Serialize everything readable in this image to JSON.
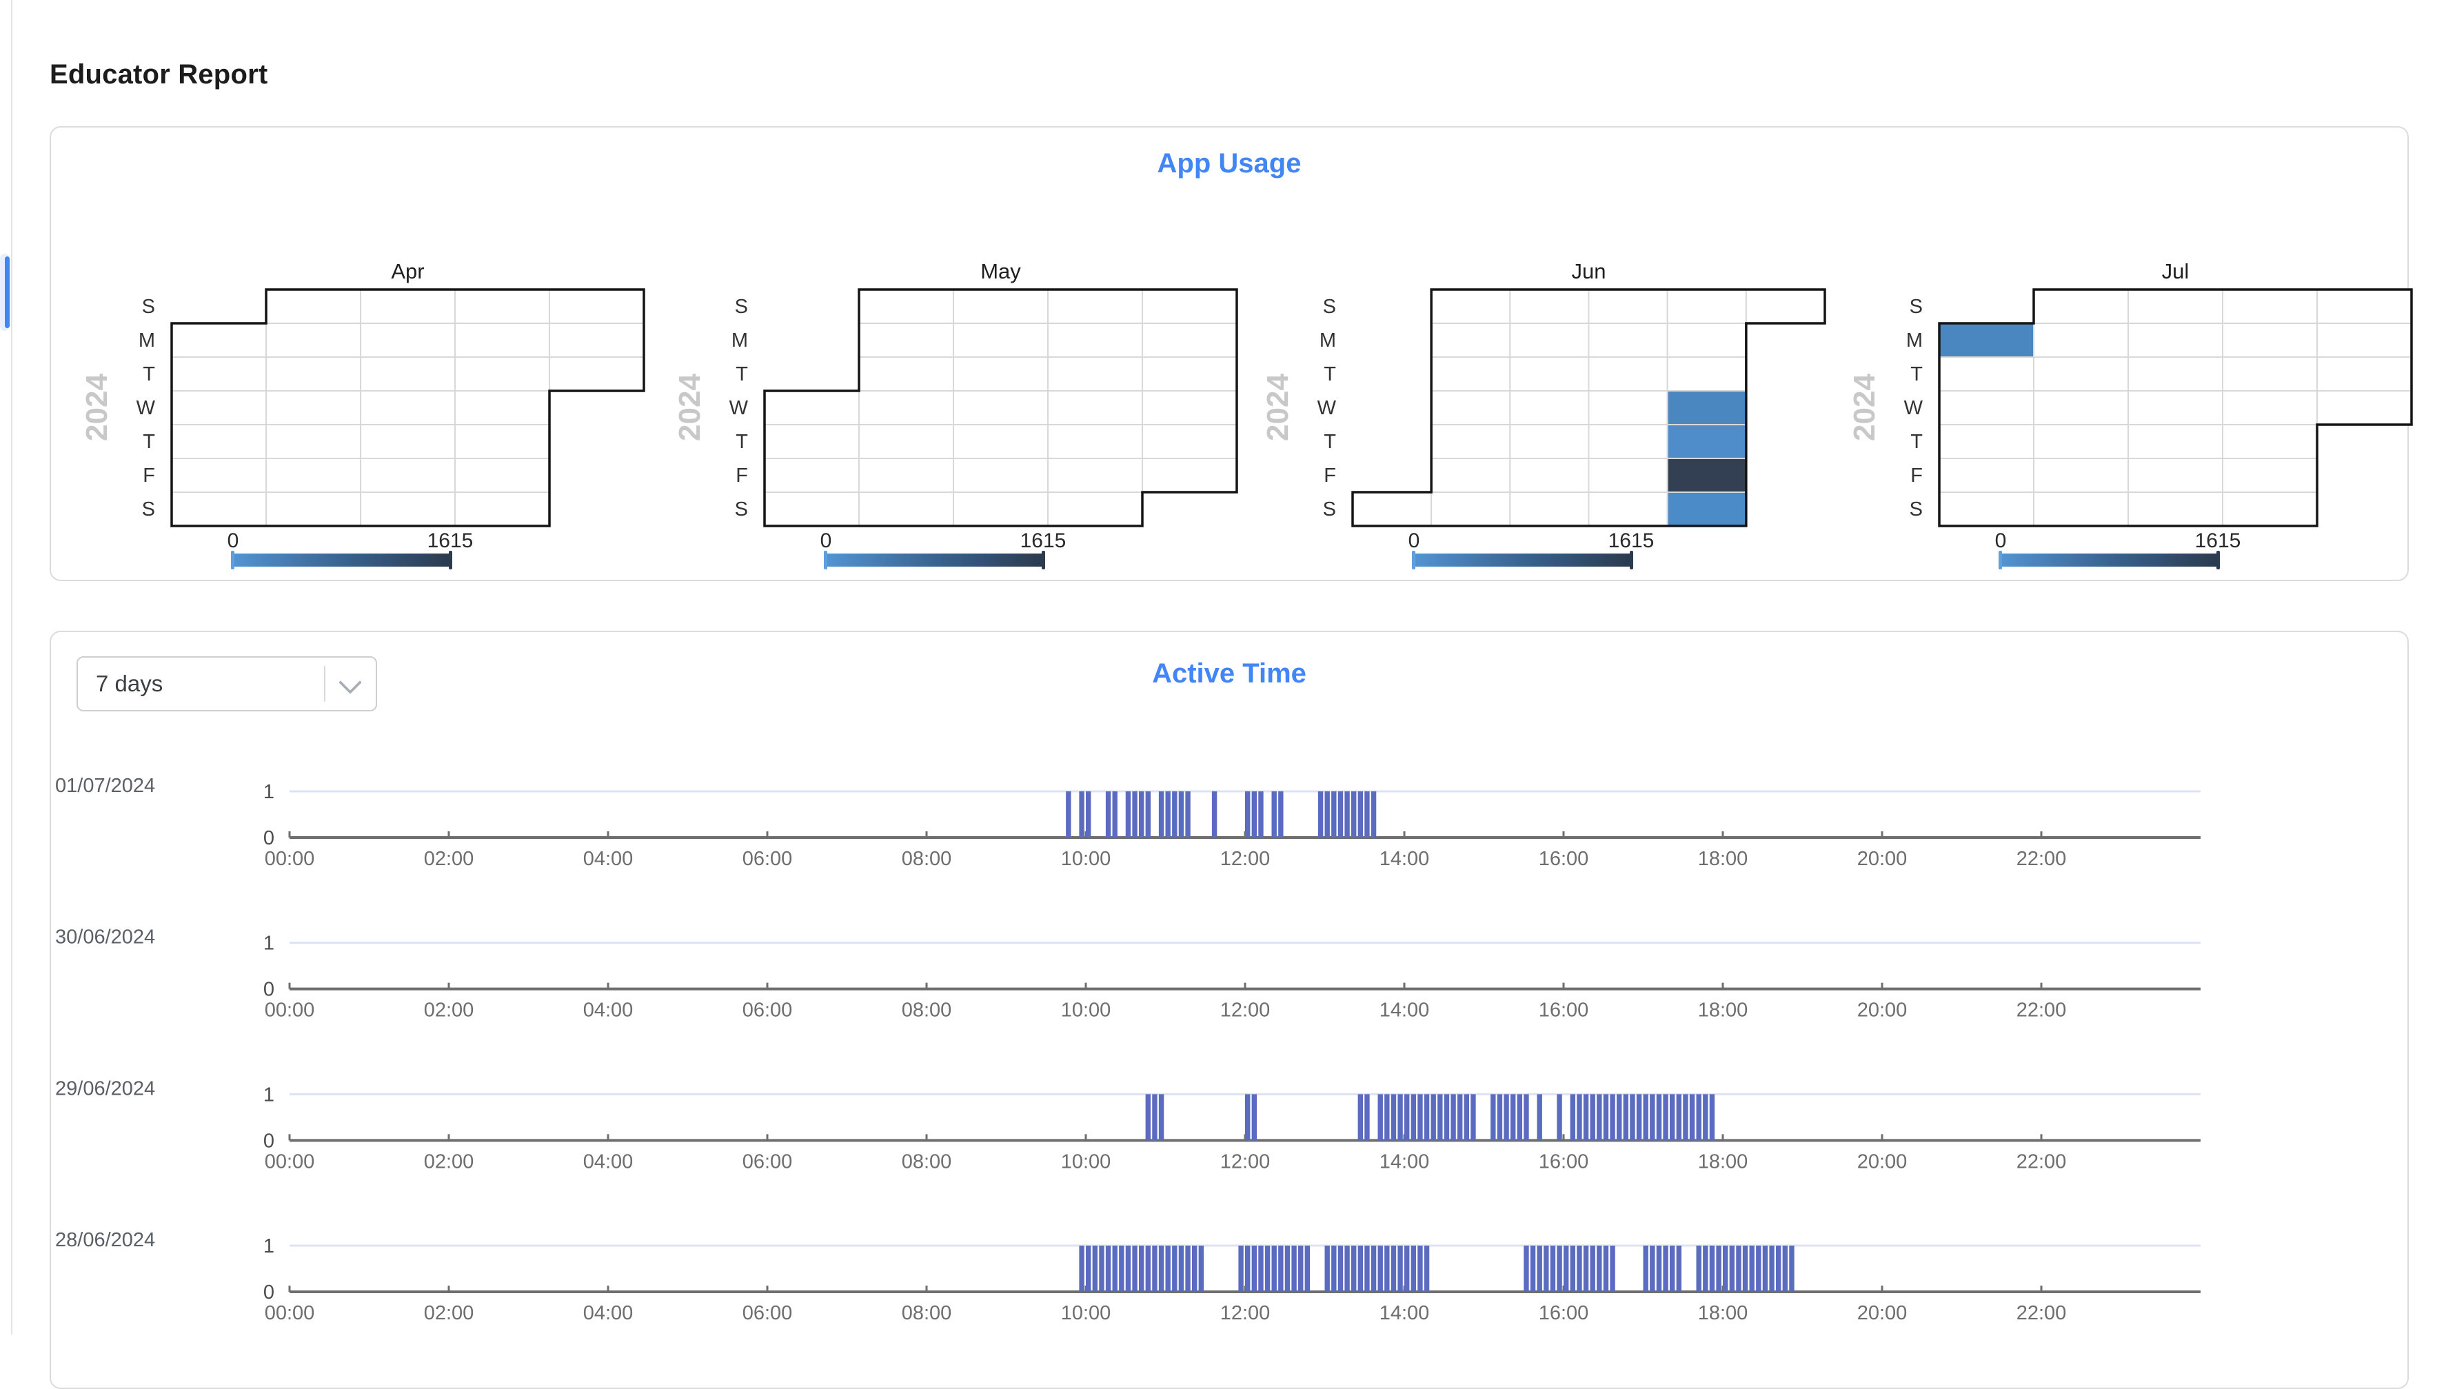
{
  "header": {
    "title": "Educator Report"
  },
  "app_usage_card": {
    "title": "App Usage"
  },
  "active_time_card": {
    "title": "Active Time",
    "range_dropdown": {
      "value": "7 days"
    }
  },
  "colors": {
    "accent_blue": "#4285f4",
    "heading_text": "#1c1c1c",
    "calendar_outline": "#141414",
    "calendar_grid": "#d8d8d8",
    "year_label": "#c8c8c8",
    "activity_bar": "#5b6cc0",
    "level_one_line": "#dee3f4",
    "axis_line": "#6e6e6e",
    "date_label": "#5b5f66",
    "card_border": "#dcdcdc",
    "scrollbar_thumb": "#4285f4",
    "scrollbar_track": "#e7f1fd"
  },
  "chart_data": [
    {
      "type": "heatmap",
      "subtype": "calendar",
      "title": "App Usage",
      "year": "2024",
      "day_labels": [
        "S",
        "M",
        "T",
        "W",
        "T",
        "F",
        "S"
      ],
      "colorbar": {
        "min": 0,
        "max": 1615,
        "min_label": "0",
        "max_label": "1615",
        "gradient": [
          "#5294d3",
          "#3a6390",
          "#2b3b4e"
        ],
        "left_cap": "#5f9fdd",
        "right_cap": "#2c3c50"
      },
      "months": [
        {
          "name": "Apr",
          "first_dow": 1,
          "n_days": 30,
          "filled": []
        },
        {
          "name": "May",
          "first_dow": 3,
          "n_days": 31,
          "filled": []
        },
        {
          "name": "Jun",
          "first_dow": 6,
          "n_days": 30,
          "filled": [
            {
              "day": 26,
              "color": "#4a87c0"
            },
            {
              "day": 27,
              "color": "#4e8dc9"
            },
            {
              "day": 28,
              "color": "#333f52"
            },
            {
              "day": 29,
              "color": "#4b8bc8"
            }
          ]
        },
        {
          "name": "Jul",
          "first_dow": 1,
          "n_days": 31,
          "filled": [
            {
              "day": 1,
              "color": "#4a87c1"
            }
          ]
        }
      ]
    },
    {
      "type": "bar",
      "subtype": "activity-timeline",
      "title": "Active Time",
      "x_tick_labels": [
        "00:00",
        "02:00",
        "04:00",
        "06:00",
        "08:00",
        "10:00",
        "12:00",
        "14:00",
        "16:00",
        "18:00",
        "20:00",
        "22:00"
      ],
      "x_range_minutes": [
        0,
        1440
      ],
      "y_tick_labels": [
        "0",
        "1"
      ],
      "slot_minutes": 5,
      "rows": [
        {
          "date": "01/07/2024",
          "active_minutes": [
            [
              585,
              590
            ],
            [
              595,
              605
            ],
            [
              615,
              625
            ],
            [
              630,
              650
            ],
            [
              655,
              680
            ],
            [
              695,
              700
            ],
            [
              720,
              735
            ],
            [
              740,
              750
            ],
            [
              775,
              820
            ]
          ]
        },
        {
          "date": "30/06/2024",
          "active_minutes": []
        },
        {
          "date": "29/06/2024",
          "active_minutes": [
            [
              645,
              660
            ],
            [
              720,
              730
            ],
            [
              805,
              815
            ],
            [
              820,
              895
            ],
            [
              905,
              935
            ],
            [
              940,
              945
            ],
            [
              955,
              960
            ],
            [
              965,
              1075
            ]
          ]
        },
        {
          "date": "28/06/2024",
          "active_minutes": [
            [
              595,
              690
            ],
            [
              715,
              770
            ],
            [
              780,
              860
            ],
            [
              930,
              1000
            ],
            [
              1020,
              1050
            ],
            [
              1060,
              1135
            ]
          ]
        }
      ]
    }
  ]
}
